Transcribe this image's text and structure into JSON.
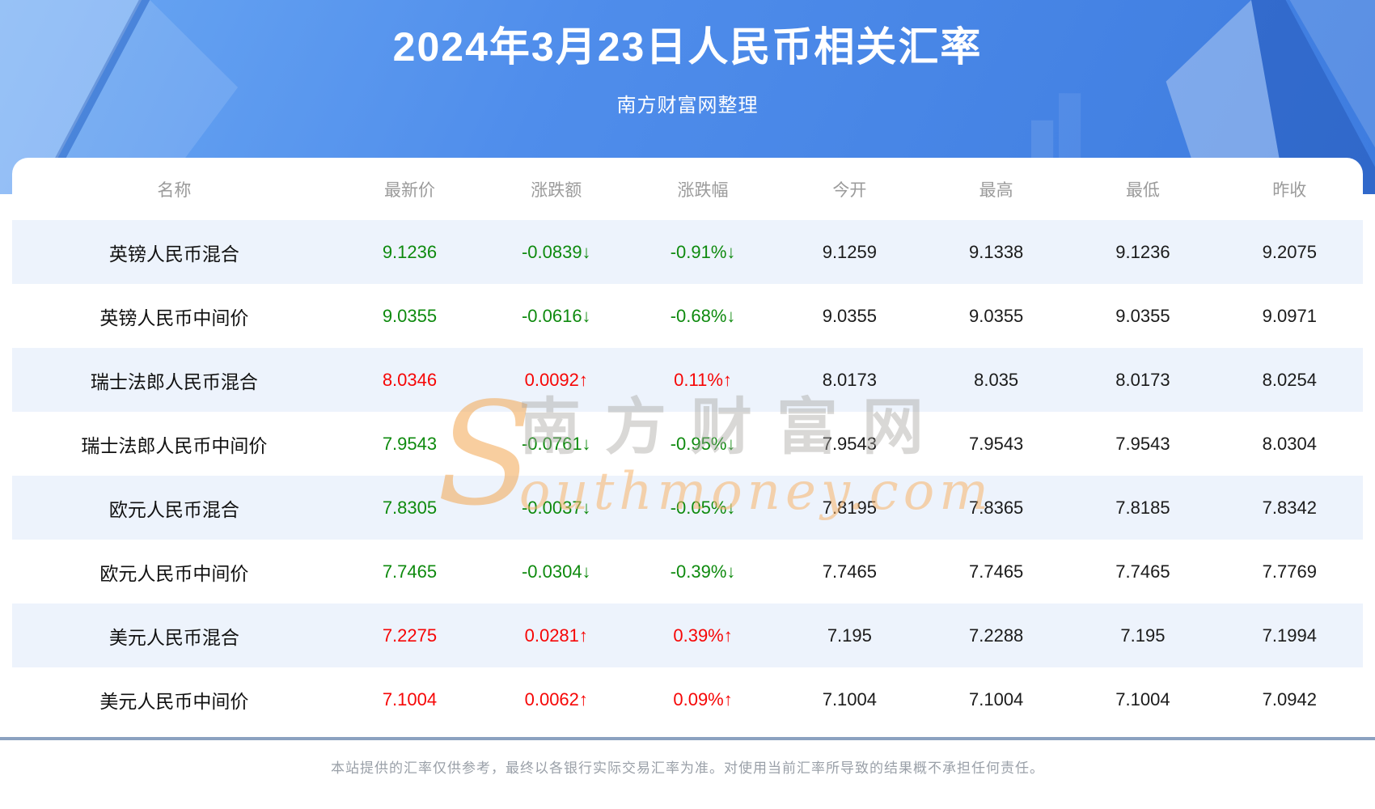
{
  "header": {
    "title": "2024年3月23日人民币相关汇率",
    "subtitle": "南方财富网整理"
  },
  "table": {
    "columns": [
      "名称",
      "最新价",
      "涨跌额",
      "涨跌幅",
      "今开",
      "最高",
      "最低",
      "昨收"
    ],
    "arrow_up": "↑",
    "arrow_down": "↓",
    "rows": [
      {
        "name": "英镑人民币混合",
        "latest": "9.1236",
        "change": "-0.0839",
        "pct": "-0.91%",
        "open": "9.1259",
        "high": "9.1338",
        "low": "9.1236",
        "prev": "9.2075",
        "trend": "down"
      },
      {
        "name": "英镑人民币中间价",
        "latest": "9.0355",
        "change": "-0.0616",
        "pct": "-0.68%",
        "open": "9.0355",
        "high": "9.0355",
        "low": "9.0355",
        "prev": "9.0971",
        "trend": "down"
      },
      {
        "name": "瑞士法郎人民币混合",
        "latest": "8.0346",
        "change": "0.0092",
        "pct": "0.11%",
        "open": "8.0173",
        "high": "8.035",
        "low": "8.0173",
        "prev": "8.0254",
        "trend": "up"
      },
      {
        "name": "瑞士法郎人民币中间价",
        "latest": "7.9543",
        "change": "-0.0761",
        "pct": "-0.95%",
        "open": "7.9543",
        "high": "7.9543",
        "low": "7.9543",
        "prev": "8.0304",
        "trend": "down"
      },
      {
        "name": "欧元人民币混合",
        "latest": "7.8305",
        "change": "-0.0037",
        "pct": "-0.05%",
        "open": "7.8195",
        "high": "7.8365",
        "low": "7.8185",
        "prev": "7.8342",
        "trend": "down"
      },
      {
        "name": "欧元人民币中间价",
        "latest": "7.7465",
        "change": "-0.0304",
        "pct": "-0.39%",
        "open": "7.7465",
        "high": "7.7465",
        "low": "7.7465",
        "prev": "7.7769",
        "trend": "down"
      },
      {
        "name": "美元人民币混合",
        "latest": "7.2275",
        "change": "0.0281",
        "pct": "0.39%",
        "open": "7.195",
        "high": "7.2288",
        "low": "7.195",
        "prev": "7.1994",
        "trend": "up"
      },
      {
        "name": "美元人民币中间价",
        "latest": "7.1004",
        "change": "0.0062",
        "pct": "0.09%",
        "open": "7.1004",
        "high": "7.1004",
        "low": "7.1004",
        "prev": "7.0942",
        "trend": "up"
      }
    ]
  },
  "watermark": {
    "initial": "S",
    "cn": "南方财富网",
    "en": "outhmoney.com"
  },
  "footer": {
    "disclaimer": "本站提供的汇率仅供参考，最终以各银行实际交易汇率为准。对使用当前汇率所导致的结果概不承担任何责任。"
  },
  "colors": {
    "up_red": "#f60606",
    "down_green": "#0e8a0e",
    "hero_blue": "#4f8deb",
    "stripe": "#edf3fc",
    "divider": "#8ba1c0",
    "header_text": "#9b9b9b"
  }
}
